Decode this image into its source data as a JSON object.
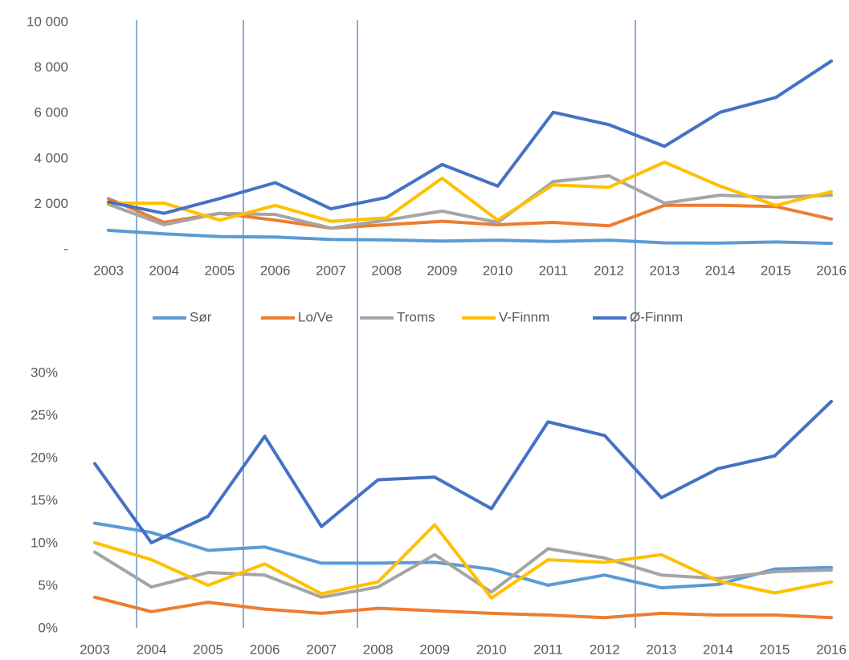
{
  "chart_data": [
    {
      "type": "line",
      "categories": [
        "2003",
        "2004",
        "2005",
        "2006",
        "2007",
        "2008",
        "2009",
        "2010",
        "2011",
        "2012",
        "2013",
        "2014",
        "2015",
        "2016"
      ],
      "ylim": [
        0,
        10000
      ],
      "yticks": [
        {
          "value": 0,
          "label": "-"
        },
        {
          "value": 2000,
          "label": "2 000"
        },
        {
          "value": 4000,
          "label": "4 000"
        },
        {
          "value": 6000,
          "label": "6 000"
        },
        {
          "value": 8000,
          "label": "8 000"
        },
        {
          "value": 10000,
          "label": "10 000"
        }
      ],
      "legend": "bottom",
      "series": [
        {
          "name": "Sør",
          "color": "#5b9bd5",
          "values": [
            850,
            700,
            580,
            560,
            450,
            430,
            380,
            420,
            360,
            420,
            300,
            290,
            340,
            280
          ]
        },
        {
          "name": "Lo/Ve",
          "color": "#ed7d31",
          "values": [
            2250,
            1200,
            1600,
            1300,
            950,
            1100,
            1250,
            1100,
            1200,
            1050,
            1950,
            1950,
            1900,
            1350
          ]
        },
        {
          "name": "Troms",
          "color": "#a5a5a5",
          "values": [
            2000,
            1100,
            1600,
            1550,
            950,
            1300,
            1700,
            1200,
            3000,
            3250,
            2050,
            2400,
            2300,
            2400
          ]
        },
        {
          "name": "V-Finnm",
          "color": "#ffc000",
          "values": [
            2050,
            2050,
            1300,
            1950,
            1250,
            1400,
            3150,
            1300,
            2850,
            2750,
            3850,
            2800,
            1950,
            2550
          ]
        },
        {
          "name": "Ø-Finnm",
          "color": "#4472c4",
          "values": [
            2100,
            1600,
            2250,
            2950,
            1800,
            2300,
            3750,
            2800,
            6050,
            5500,
            4550,
            6050,
            6700,
            8300
          ]
        }
      ]
    },
    {
      "type": "line",
      "categories": [
        "2003",
        "2004",
        "2005",
        "2006",
        "2007",
        "2008",
        "2009",
        "2010",
        "2011",
        "2012",
        "2013",
        "2014",
        "2015",
        "2016"
      ],
      "ylim": [
        0,
        30
      ],
      "yticks": [
        {
          "value": 0,
          "label": "0%"
        },
        {
          "value": 5,
          "label": "5%"
        },
        {
          "value": 10,
          "label": "10%"
        },
        {
          "value": 15,
          "label": "15%"
        },
        {
          "value": 20,
          "label": "20%"
        },
        {
          "value": 25,
          "label": "25%"
        },
        {
          "value": 30,
          "label": "30%"
        }
      ],
      "series": [
        {
          "color": "#5b9bd5",
          "values": [
            12.4,
            11.3,
            9.2,
            9.6,
            7.7,
            7.7,
            7.8,
            7.0,
            5.1,
            6.3,
            4.8,
            5.2,
            7.0,
            7.2
          ]
        },
        {
          "color": "#ed7d31",
          "values": [
            3.7,
            2.0,
            3.1,
            2.3,
            1.8,
            2.4,
            2.1,
            1.8,
            1.6,
            1.3,
            1.8,
            1.6,
            1.6,
            1.3
          ]
        },
        {
          "color": "#a5a5a5",
          "values": [
            9.0,
            4.9,
            6.6,
            6.3,
            3.7,
            4.9,
            8.7,
            4.3,
            9.4,
            8.3,
            6.3,
            5.9,
            6.7,
            6.9
          ]
        },
        {
          "color": "#ffc000",
          "values": [
            10.1,
            8.1,
            5.1,
            7.6,
            4.1,
            5.5,
            12.2,
            3.6,
            8.1,
            7.8,
            8.7,
            5.6,
            4.2,
            5.5
          ]
        },
        {
          "color": "#4472c4",
          "values": [
            19.4,
            10.1,
            13.2,
            22.6,
            12.0,
            17.5,
            17.8,
            14.1,
            24.3,
            22.7,
            15.4,
            18.8,
            20.3,
            26.7
          ]
        }
      ]
    }
  ]
}
